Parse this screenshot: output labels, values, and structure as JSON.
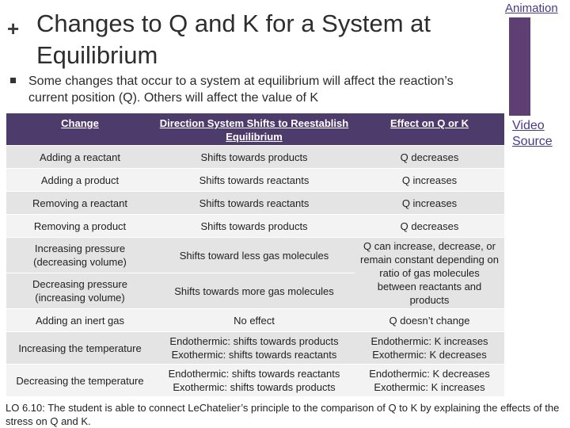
{
  "header": {
    "plus": "+",
    "title": "Changes to Q and K for a System at Equilibrium"
  },
  "links": {
    "animation": "Animation",
    "video": "Video Source"
  },
  "bullet": "Some changes that occur to a system at equilibrium will affect the reaction’s current position (Q).  Others will affect the value of K",
  "table": {
    "headers": [
      "Change",
      "Direction System Shifts to Reestablish Equilibrium",
      "Effect on Q or K"
    ],
    "rows": [
      {
        "change": "Adding a reactant",
        "direction": "Shifts towards products",
        "effect": "Q decreases"
      },
      {
        "change": "Adding a product",
        "direction": "Shifts towards reactants",
        "effect": "Q increases"
      },
      {
        "change": "Removing a reactant",
        "direction": "Shifts towards reactants",
        "effect": "Q increases"
      },
      {
        "change": "Removing a product",
        "direction": "Shifts towards products",
        "effect": "Q decreases"
      },
      {
        "change": "Increasing pressure (decreasing volume)",
        "direction": "Shifts toward less gas molecules",
        "effect": "Q can increase, decrease, or remain constant depending on ratio of gas molecules between reactants and products"
      },
      {
        "change": "Decreasing pressure (increasing volume)",
        "direction": "Shifts towards more gas molecules"
      },
      {
        "change": "Adding an inert gas",
        "direction": "No effect",
        "effect": "Q doesn’t change"
      },
      {
        "change": "Increasing the temperature",
        "direction_1": "Endothermic: shifts towards products",
        "direction_2": "Exothermic: shifts towards reactants",
        "effect_1": "Endothermic: K increases",
        "effect_2": "Exothermic: K decreases"
      },
      {
        "change": "Decreasing the temperature",
        "direction_1": "Endothermic: shifts towards reactants",
        "direction_2": "Exothermic: shifts towards products",
        "effect_1": "Endothermic: K decreases",
        "effect_2": "Exothermic: K increases"
      }
    ]
  },
  "footer": "LO 6.10: The student is able to connect LeChatelier’s principle to the comparison of Q to K by explaining the effects of the stress on Q and K."
}
